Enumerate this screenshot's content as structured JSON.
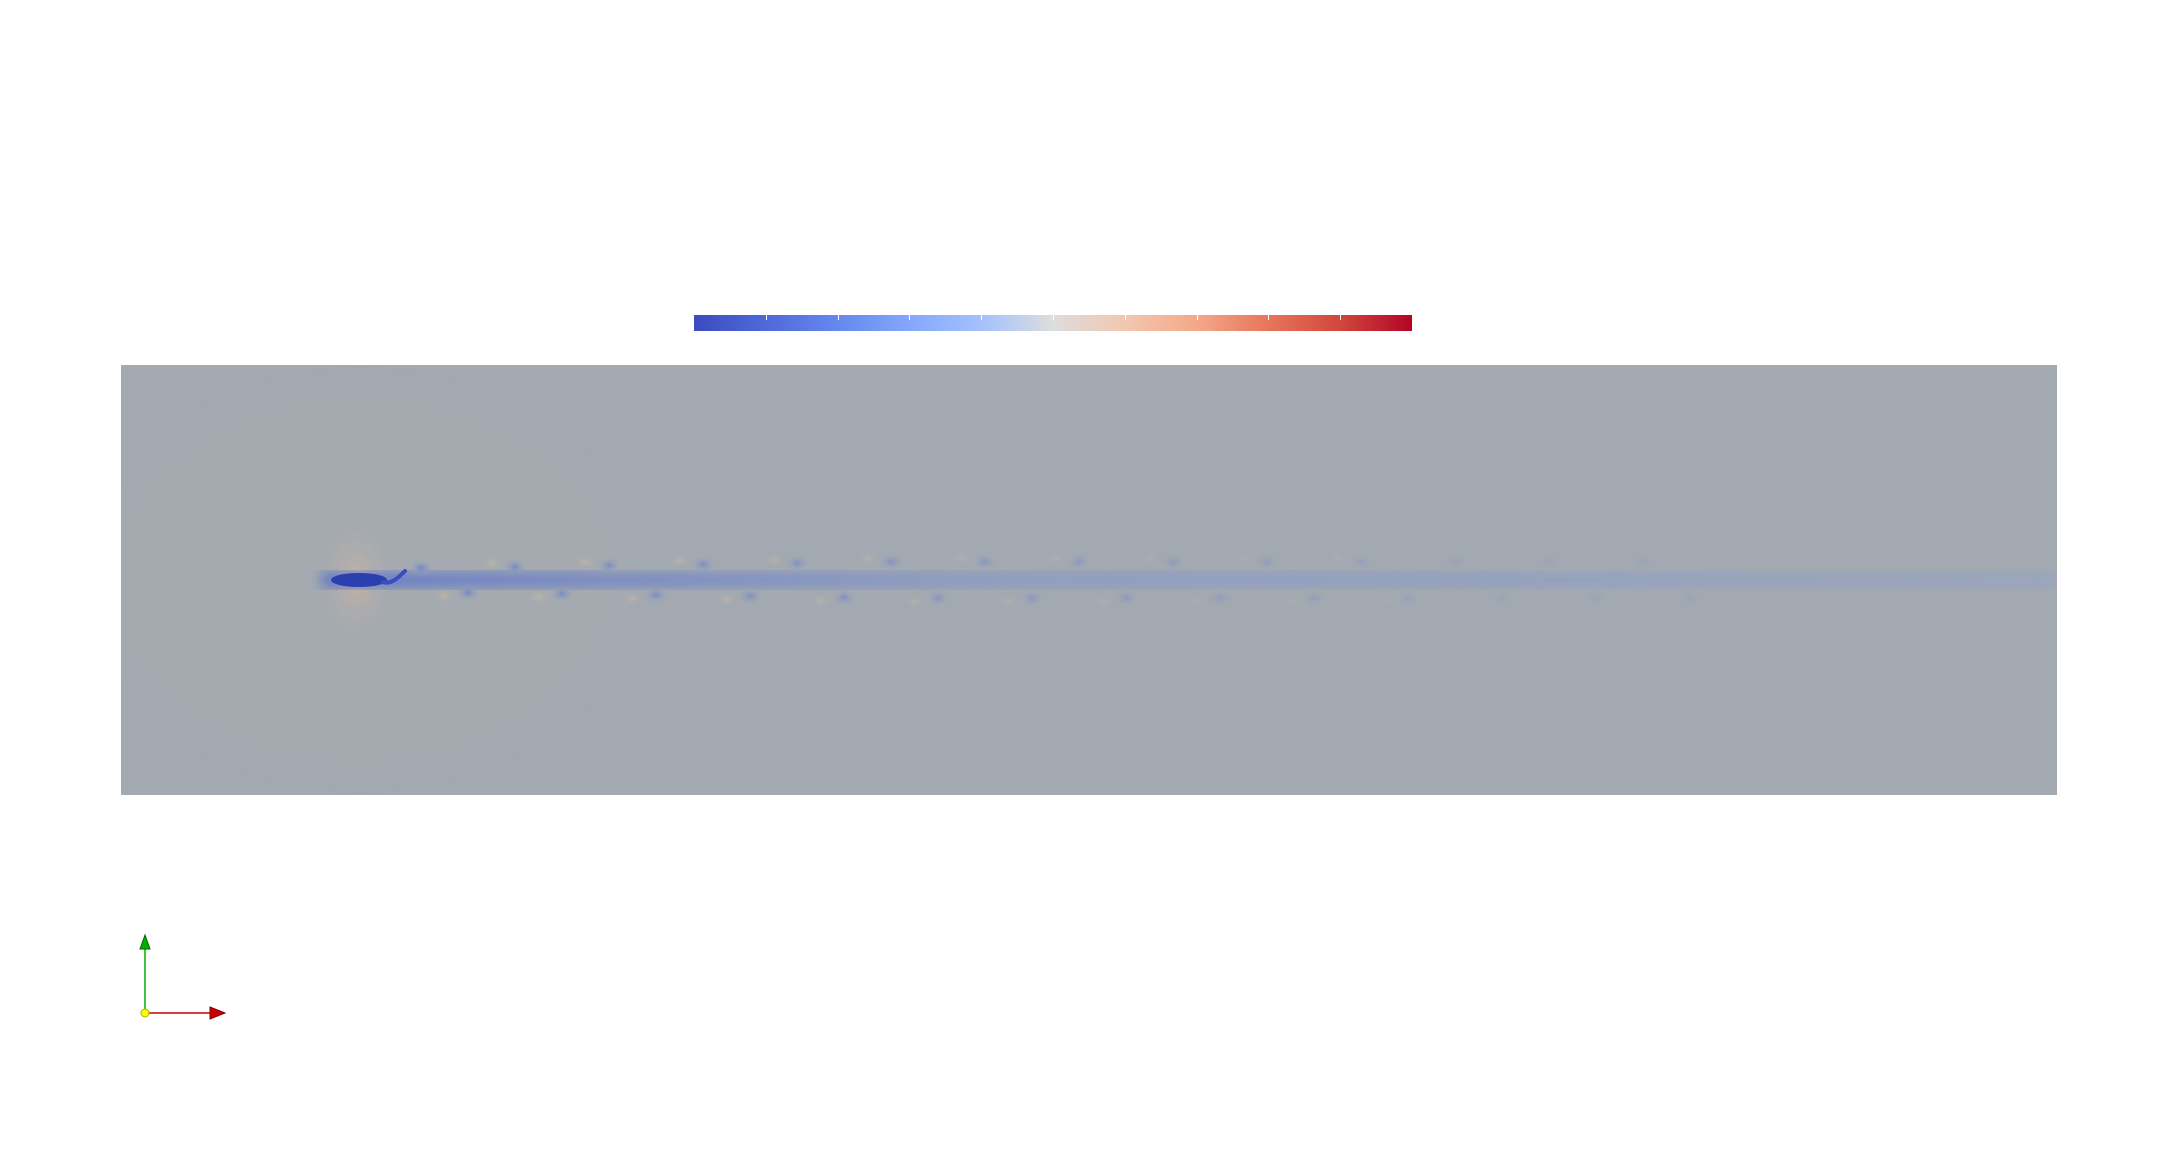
{
  "colors": {
    "background": "#ffffff",
    "field_base": "#a2a9b1",
    "colormap_low": "#3b4cc0",
    "colormap_mid": "#dddddd",
    "colormap_high": "#b40426",
    "axis_x": "#cc0000",
    "axis_y": "#00b000",
    "axis_origin": "#ffff00"
  },
  "colorbar": {
    "colormap": "Cool to Warm",
    "tick_count": 11
  },
  "field": {
    "description_icon": "flow-field-with-vortex-wake"
  },
  "axes_triad": {
    "icon": "orientation-axes-icon"
  }
}
